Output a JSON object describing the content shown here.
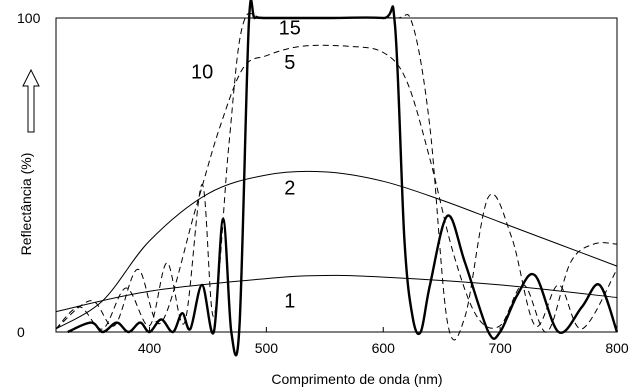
{
  "chart_data": {
    "type": "line",
    "title": "",
    "xlabel": "Comprimento de onda (nm)",
    "ylabel": "Reflectância  (%)",
    "xlim": [
      320,
      800
    ],
    "ylim": [
      0,
      100
    ],
    "xticks": [
      400,
      500,
      600,
      700,
      800
    ],
    "yticks": [
      0,
      100
    ],
    "grid": false,
    "legend": "none",
    "series": [
      {
        "name": "1",
        "style": "solid-thin",
        "color": "#000000",
        "x": [
          320,
          400,
          500,
          550,
          600,
          700,
          800
        ],
        "y": [
          6.5,
          13,
          17,
          18,
          17.5,
          15,
          11
        ]
      },
      {
        "name": "2",
        "style": "solid-thin",
        "color": "#000000",
        "x": [
          320,
          360,
          400,
          450,
          500,
          550,
          600,
          650,
          700,
          750,
          800
        ],
        "y": [
          1,
          10,
          29,
          44,
          50,
          51,
          48,
          42,
          35,
          28,
          21
        ]
      },
      {
        "name": "5",
        "style": "dashed",
        "color": "#000000",
        "x": [
          320,
          350,
          370,
          390,
          410,
          440,
          460,
          480,
          500,
          530,
          570,
          600,
          620,
          640,
          660,
          680,
          700,
          720,
          740,
          760,
          780,
          800
        ],
        "y": [
          1,
          10,
          2,
          20,
          3,
          40,
          65,
          84,
          88,
          91,
          91,
          89,
          80,
          55,
          25,
          5,
          2,
          15,
          0,
          22,
          28,
          28
        ]
      },
      {
        "name": "10",
        "style": "dashed",
        "color": "#000000",
        "x": [
          320,
          340,
          360,
          380,
          400,
          415,
          430,
          445,
          455,
          468,
          480,
          500,
          560,
          610,
          625,
          640,
          655,
          670,
          690,
          710,
          730,
          750,
          770,
          800
        ],
        "y": [
          1,
          8,
          1,
          14,
          2,
          22,
          3,
          47,
          5,
          60,
          98,
          100,
          100,
          100,
          98,
          65,
          3,
          5,
          43,
          30,
          2,
          15,
          1,
          20
        ]
      },
      {
        "name": "15",
        "style": "solid-thick",
        "color": "#000000",
        "x": [
          330,
          350,
          360,
          372,
          382,
          392,
          400,
          410,
          420,
          428,
          435,
          445,
          455,
          463,
          470,
          477,
          485,
          490,
          500,
          550,
          600,
          610,
          618,
          625,
          632,
          640,
          655,
          670,
          690,
          700,
          715,
          730,
          750,
          770,
          785,
          800
        ],
        "y": [
          0,
          3,
          0,
          3,
          0,
          3,
          0,
          4,
          0,
          6,
          1,
          15,
          0,
          36,
          0,
          2,
          98,
          100,
          100,
          100,
          100,
          98,
          30,
          5,
          0,
          15,
          37,
          22,
          0,
          0,
          12,
          18,
          0,
          8,
          15,
          0
        ]
      }
    ],
    "annotations": [
      {
        "text": "15",
        "x": 520,
        "y": 97
      },
      {
        "text": "10",
        "x": 445,
        "y": 83
      },
      {
        "text": "5",
        "x": 520,
        "y": 86
      },
      {
        "text": "2",
        "x": 520,
        "y": 46
      },
      {
        "text": "1",
        "x": 520,
        "y": 10
      }
    ],
    "ylabel_arrow": "up-arrow-icon"
  }
}
